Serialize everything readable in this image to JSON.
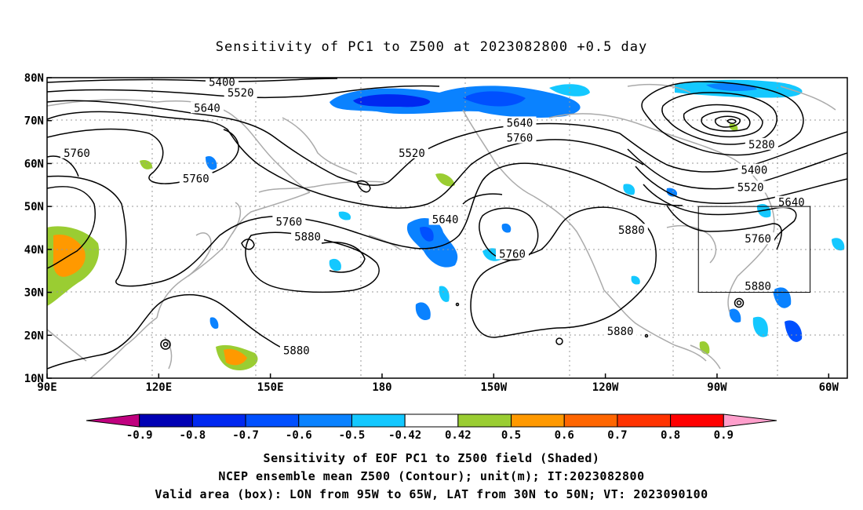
{
  "title": "Sensitivity of PC1 to Z500 at 2023082800 +0.5 day",
  "map": {
    "lon_range": [
      90,
      305
    ],
    "lat_range": [
      10,
      80
    ],
    "y_axis_labels": [
      "10N",
      "20N",
      "30N",
      "40N",
      "50N",
      "60N",
      "70N",
      "80N"
    ],
    "x_axis_labels": [
      "90E",
      "120E",
      "150E",
      "180",
      "150W",
      "120W",
      "90W",
      "60W"
    ],
    "contour_labels": [
      {
        "text": "5400",
        "lon": 137,
        "lat": 79
      },
      {
        "text": "5520",
        "lon": 142,
        "lat": 76.5
      },
      {
        "text": "5640",
        "lon": 133,
        "lat": 73
      },
      {
        "text": "5760",
        "lon": 98,
        "lat": 62.5
      },
      {
        "text": "5760",
        "lon": 130,
        "lat": 56.5
      },
      {
        "text": "5520",
        "lon": 188,
        "lat": 62.5
      },
      {
        "text": "5640",
        "lon": 217,
        "lat": 69.5
      },
      {
        "text": "5760",
        "lon": 217,
        "lat": 66
      },
      {
        "text": "5280",
        "lon": 282,
        "lat": 64.5
      },
      {
        "text": "5400",
        "lon": 280,
        "lat": 58.5
      },
      {
        "text": "5520",
        "lon": 279,
        "lat": 54.5
      },
      {
        "text": "5640",
        "lon": 290,
        "lat": 51
      },
      {
        "text": "5640",
        "lon": 197,
        "lat": 47
      },
      {
        "text": "5760",
        "lon": 155,
        "lat": 46.5
      },
      {
        "text": "5880",
        "lon": 160,
        "lat": 43
      },
      {
        "text": "5760",
        "lon": 281,
        "lat": 42.5
      },
      {
        "text": "5760",
        "lon": 215,
        "lat": 39
      },
      {
        "text": "5880",
        "lon": 247,
        "lat": 44.5
      },
      {
        "text": "5880",
        "lon": 281,
        "lat": 31.5
      },
      {
        "text": "5880",
        "lon": 157,
        "lat": 16.5
      },
      {
        "text": "5880",
        "lon": 244,
        "lat": 21
      }
    ],
    "valid_box": {
      "lon": [
        265,
        295
      ],
      "lat": [
        30,
        50
      ]
    }
  },
  "colorbar": {
    "colors": [
      "#c0007f",
      "#0000b4",
      "#0028f0",
      "#0050ff",
      "#0a82ff",
      "#14c8ff",
      "#ffffff",
      "#9acd32",
      "#ff9900",
      "#ff6600",
      "#ff3300",
      "#ff0000",
      "#ff9fcc"
    ],
    "labels": [
      "-0.9",
      "-0.8",
      "-0.7",
      "-0.6",
      "-0.5",
      "-0.42",
      "0.42",
      "0.5",
      "0.6",
      "0.7",
      "0.8",
      "0.9"
    ]
  },
  "footer": {
    "line1": "Sensitivity of EOF PC1 to Z500 field (Shaded)",
    "line2": "NCEP ensemble mean Z500 (Contour); unit(m); IT:2023082800",
    "line3": "Valid area (box): LON from 95W to 65W, LAT from 30N to 50N; VT: 2023090100"
  }
}
